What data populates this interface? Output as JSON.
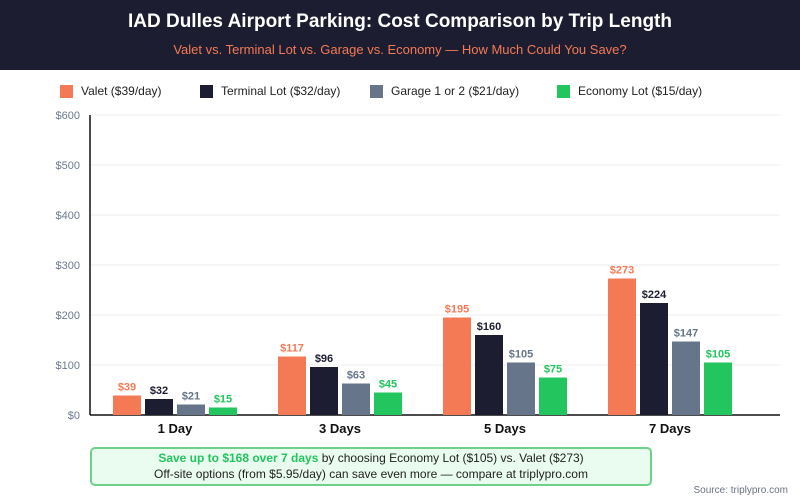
{
  "header": {
    "title": "IAD Dulles Airport Parking: Cost Comparison by Trip Length",
    "subtitle": "Valet vs. Terminal Lot vs. Garage vs. Economy — How Much Could You Save?"
  },
  "chart_data": {
    "type": "bar",
    "categories": [
      "1 Day",
      "3 Days",
      "5 Days",
      "7 Days"
    ],
    "series": [
      {
        "name": "Valet ($39/day)",
        "color": "#f47a55",
        "values": [
          39,
          117,
          195,
          273
        ]
      },
      {
        "name": "Terminal Lot ($32/day)",
        "color": "#1c1d30",
        "values": [
          32,
          96,
          160,
          224
        ]
      },
      {
        "name": "Garage 1 or 2 ($21/day)",
        "color": "#66758a",
        "values": [
          21,
          63,
          105,
          147
        ]
      },
      {
        "name": "Economy Lot ($15/day)",
        "color": "#22c55e",
        "values": [
          15,
          45,
          75,
          105
        ]
      }
    ],
    "yticks": [
      "$0",
      "$100",
      "$200",
      "$300",
      "$400",
      "$500",
      "$600"
    ],
    "ylim": [
      0,
      600
    ],
    "grid": true,
    "legend": "top"
  },
  "note": {
    "highlight": "Save up to $168 over 7 days",
    "line1_rest": " by choosing Economy Lot ($105) vs. Valet ($273)",
    "line2": "Off-site options (from $5.95/day) can save even more — compare at triplypro.com"
  },
  "source": "Source: triplypro.com"
}
